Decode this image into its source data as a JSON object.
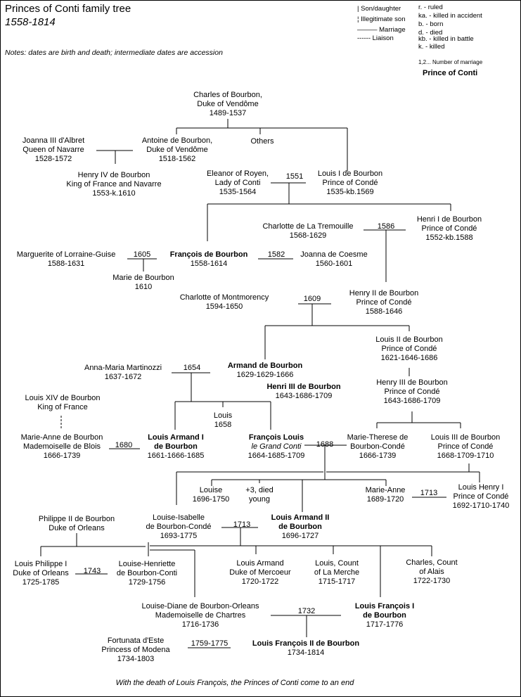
{
  "header": {
    "title": "Princes of Conti family tree",
    "subtitle": "1558-1814",
    "notes": "Notes: dates are birth and death; intermediate dates are accession"
  },
  "legend": {
    "son_daughter": "| Son/daughter",
    "illegitimate": "¦ Illegitimate son",
    "marriage": "——— Marriage",
    "liaison": "------ Liaison",
    "ruled": "r. - ruled",
    "killed_accident": "ka. - killed in accident",
    "born": "b. - born",
    "died": "d. - died",
    "killed_battle": "kb. - killed in battle",
    "killed": "k. - killed",
    "marriage_number": "1,2... Number of marriage",
    "prince_of_conti": "Prince of Conti"
  },
  "people": [
    {
      "lines": [
        "Charles of Bourbon,",
        "Duke of Vendôme",
        "1489-1537"
      ]
    },
    {
      "lines": [
        "Joanna III d'Albret",
        "Queen of Navarre",
        "1528-1572"
      ]
    },
    {
      "lines": [
        "Antoine de Bourbon,",
        "Duke of Vendôme",
        "1518-1562"
      ]
    },
    {
      "lines": [
        "Others"
      ]
    },
    {
      "lines": [
        "Henry IV de Bourbon",
        "King of France and Navarre",
        "1553-k.1610"
      ]
    },
    {
      "lines": [
        "Eleanor of Royen,",
        "Lady of Conti",
        "1535-1564"
      ]
    },
    {
      "lines": [
        "Louis I de Bourbon",
        "Prince of Condé",
        "1535-kb.1569"
      ]
    },
    {
      "lines": [
        "Charlotte de La Tremouille",
        "1568-1629"
      ]
    },
    {
      "lines": [
        "Henri I de Bourbon",
        "Prince of Condé",
        "1552-kb.1588"
      ]
    },
    {
      "lines": [
        "Marguerite of Lorraine-Guise",
        "1588-1631"
      ]
    },
    {
      "lines": [
        "François de Bourbon",
        "1558-1614"
      ]
    },
    {
      "lines": [
        "Joanna de Coesme",
        "1560-1601"
      ]
    },
    {
      "lines": [
        "Marie de Bourbon",
        "1610"
      ]
    },
    {
      "lines": [
        "Charlotte of Montmorency",
        "1594-1650"
      ]
    },
    {
      "lines": [
        "Henry II de Bourbon",
        "Prince of Condé",
        "1588-1646"
      ]
    },
    {
      "lines": [
        "Louis II de Bourbon",
        "Prince of Condé",
        "1621-1646-1686"
      ]
    },
    {
      "lines": [
        "Anna-Maria Martinozzi",
        "1637-1672"
      ]
    },
    {
      "lines": [
        "Armand de Bourbon",
        "1629-1629-1666"
      ]
    },
    {
      "lines": [
        "Henri III de Bourbon",
        "1643-1686-1709"
      ]
    },
    {
      "lines": [
        "Henry III de Bourbon",
        "Prince of Condé",
        "1643-1686-1709"
      ]
    },
    {
      "lines": [
        "Louis XIV de Bourbon",
        "King of France"
      ]
    },
    {
      "lines": [
        "Louis",
        "1658"
      ]
    },
    {
      "lines": [
        "Marie-Anne de Bourbon",
        "Mademoiselle de Blois",
        "1666-1739"
      ]
    },
    {
      "lines": [
        "Louis Armand I",
        "de Bourbon",
        "1661-1666-1685"
      ]
    },
    {
      "lines": [
        "François Louis",
        "le Grand Conti",
        "1664-1685-1709"
      ]
    },
    {
      "lines": [
        "Marie-Therese de",
        "Bourbon-Condé",
        "1666-1739"
      ]
    },
    {
      "lines": [
        "Louis III de Bourbon",
        "Prince of Condé",
        "1668-1709-1710"
      ]
    },
    {
      "lines": [
        "Louise",
        "1696-1750"
      ]
    },
    {
      "lines": [
        "+3, died",
        "young"
      ]
    },
    {
      "lines": [
        "Marie-Anne",
        "1689-1720"
      ]
    },
    {
      "lines": [
        "Louis Henry I",
        "Prince of Condé",
        "1692-1710-1740"
      ]
    },
    {
      "lines": [
        "Philippe II de Bourbon",
        "Duke of Orleans"
      ]
    },
    {
      "lines": [
        "Louise-Isabelle",
        "de Bourbon-Condé",
        "1693-1775"
      ]
    },
    {
      "lines": [
        "Louis Armand II",
        "de Bourbon",
        "1696-1727"
      ]
    },
    {
      "lines": [
        "Louis Philippe I",
        "Duke of Orleans",
        "1725-1785"
      ]
    },
    {
      "lines": [
        "Louise-Henriette",
        "de Bourbon-Conti",
        "1729-1756"
      ]
    },
    {
      "lines": [
        "Louis Armand",
        "Duke of Mercoeur",
        "1720-1722"
      ]
    },
    {
      "lines": [
        "Louis, Count",
        "of La Merche",
        "1715-1717"
      ]
    },
    {
      "lines": [
        "Charles, Count",
        "of Alais",
        "1722-1730"
      ]
    },
    {
      "lines": [
        "Louise-Diane de Bourbon-Orleans",
        "Mademoiselle de Chartres",
        "1716-1736"
      ]
    },
    {
      "lines": [
        "Louis François I",
        "de Bourbon",
        "1717-1776"
      ]
    },
    {
      "lines": [
        "Fortunata d'Este",
        "Princess of Modena",
        "1734-1803"
      ]
    },
    {
      "lines": [
        "Louis François II de Bourbon",
        "1734-1814"
      ]
    }
  ],
  "marriages": [
    "1551",
    "1586",
    "1605",
    "1582",
    "1609",
    "1654",
    "1680",
    "1688",
    "1713",
    "1713",
    "1743",
    "1732",
    "1759-1775"
  ],
  "footer": "With the death of Louis François, the Princes of Conti come to an end"
}
